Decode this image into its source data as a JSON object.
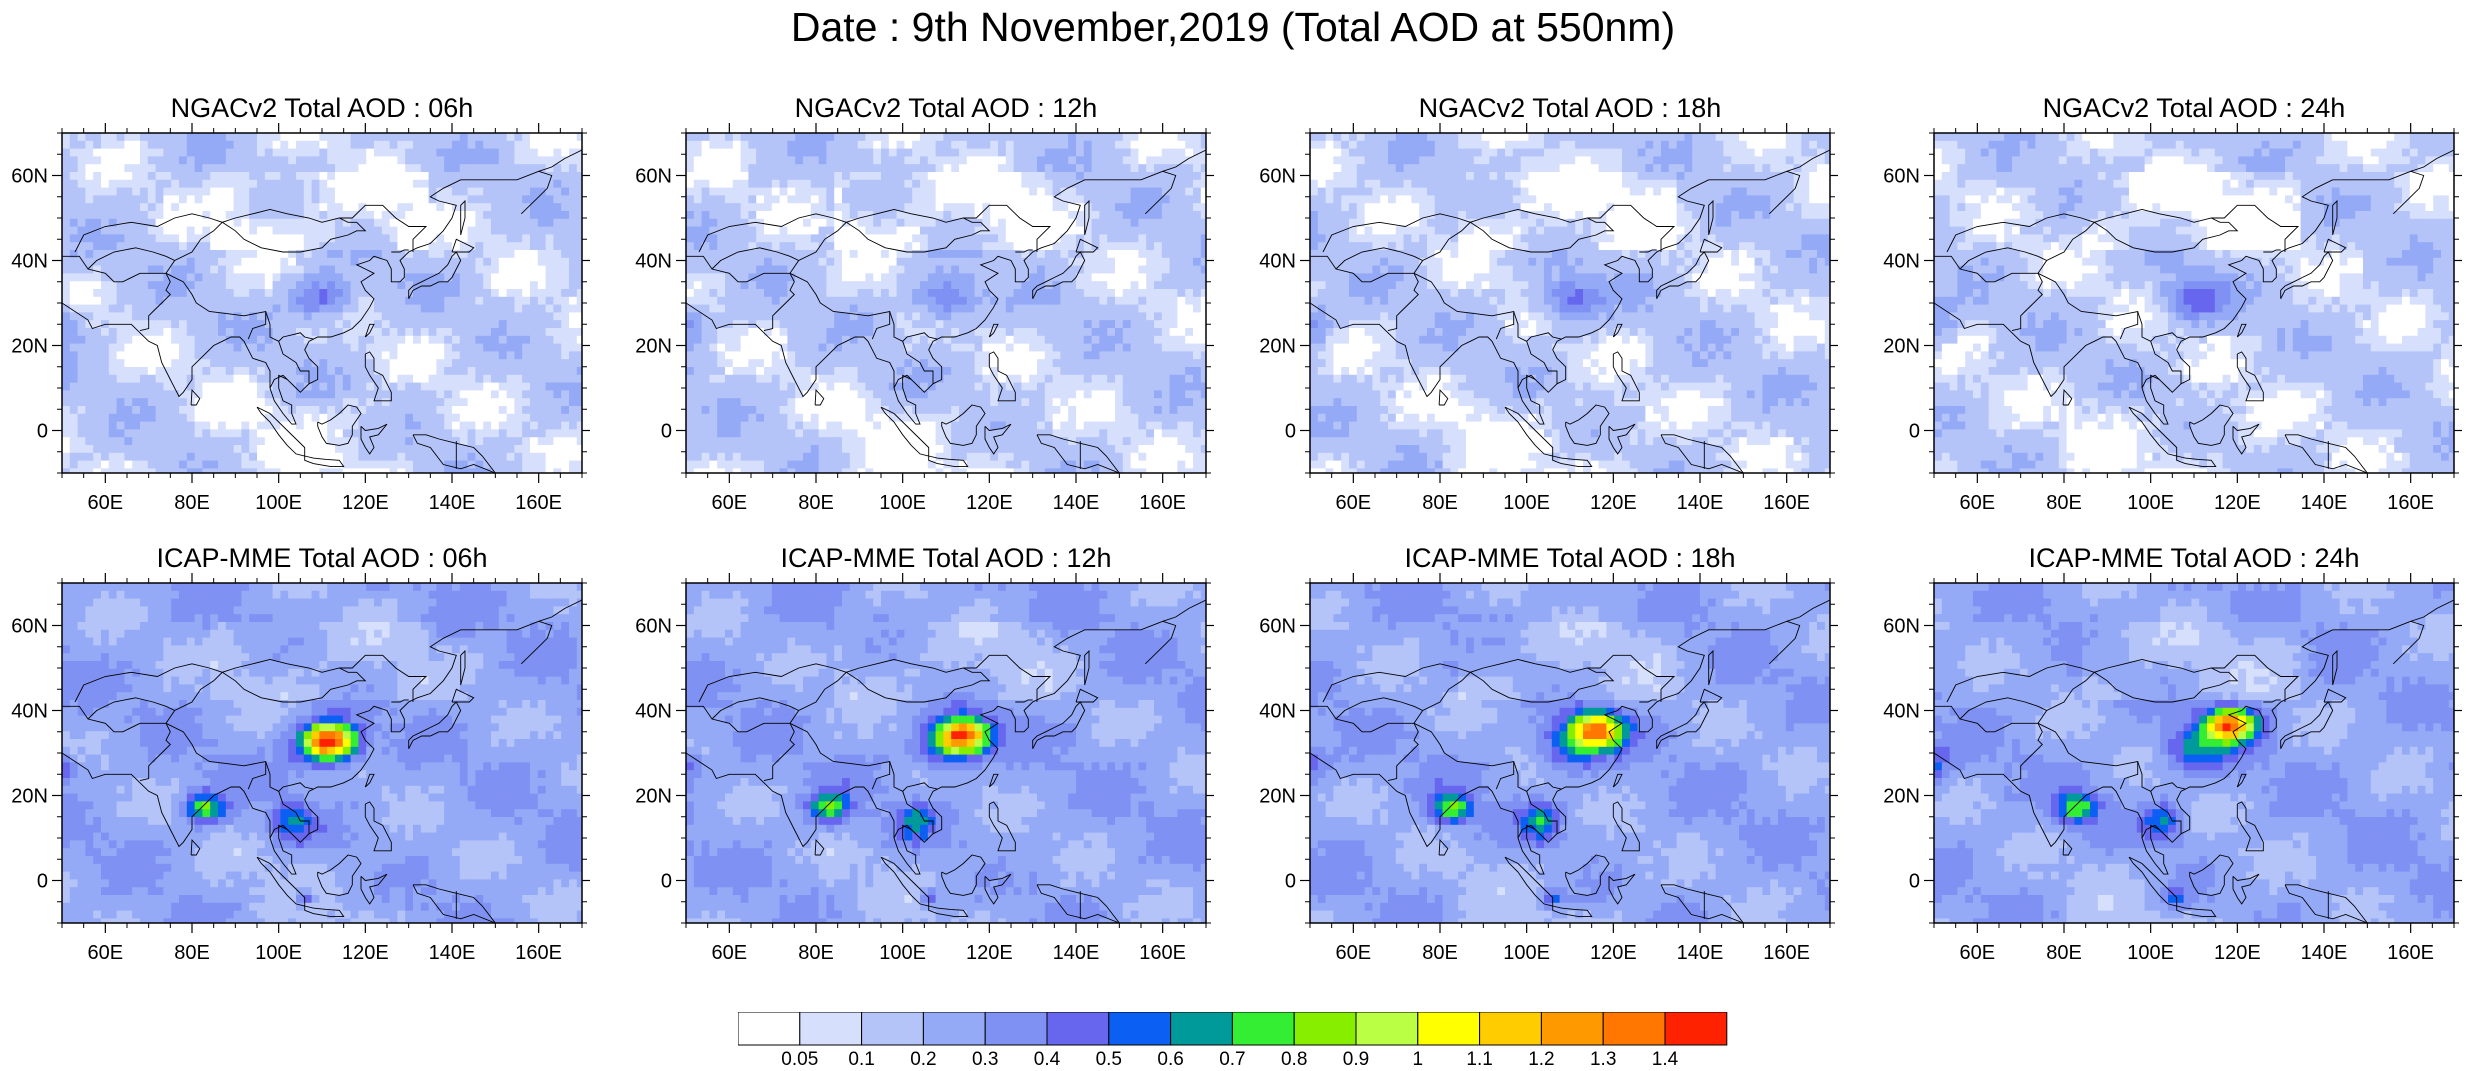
{
  "title": "Date : 9th November,2019 (Total AOD at 550nm)",
  "panels": [
    {
      "title": "NGACv2 Total AOD : 06h",
      "model": "NGACv2",
      "hour": "06h"
    },
    {
      "title": "NGACv2 Total AOD : 12h",
      "model": "NGACv2",
      "hour": "12h"
    },
    {
      "title": "NGACv2 Total AOD : 18h",
      "model": "NGACv2",
      "hour": "18h"
    },
    {
      "title": "NGACv2 Total AOD : 24h",
      "model": "NGACv2",
      "hour": "24h"
    },
    {
      "title": "ICAP-MME Total AOD : 06h",
      "model": "ICAP-MME",
      "hour": "06h"
    },
    {
      "title": "ICAP-MME Total AOD : 12h",
      "model": "ICAP-MME",
      "hour": "12h"
    },
    {
      "title": "ICAP-MME Total AOD : 18h",
      "model": "ICAP-MME",
      "hour": "18h"
    },
    {
      "title": "ICAP-MME Total AOD : 24h",
      "model": "ICAP-MME",
      "hour": "24h"
    }
  ],
  "map": {
    "lon_range": [
      50,
      170
    ],
    "lat_range": [
      -10,
      70
    ],
    "lat_ticks": [
      {
        "value": 0,
        "label": "0"
      },
      {
        "value": 20,
        "label": "20N"
      },
      {
        "value": 40,
        "label": "40N"
      },
      {
        "value": 60,
        "label": "60N"
      }
    ],
    "lon_ticks": [
      {
        "value": 60,
        "label": "60E"
      },
      {
        "value": 80,
        "label": "80E"
      },
      {
        "value": 100,
        "label": "100E"
      },
      {
        "value": 120,
        "label": "120E"
      },
      {
        "value": 140,
        "label": "140E"
      },
      {
        "value": 160,
        "label": "160E"
      }
    ]
  },
  "colorbar": {
    "levels": [
      "0.05",
      "0.1",
      "0.2",
      "0.3",
      "0.4",
      "0.5",
      "0.6",
      "0.7",
      "0.8",
      "0.9",
      "1",
      "1.1",
      "1.2",
      "1.3",
      "1.4"
    ],
    "colors": [
      "#ffffff",
      "#d6dffc",
      "#b4c3f8",
      "#94aaf6",
      "#7f91f2",
      "#6666ee",
      "#0b5ff2",
      "#009a9a",
      "#33ee33",
      "#88ee00",
      "#bbff44",
      "#ffff00",
      "#ffcc00",
      "#ff9900",
      "#ff7700",
      "#ff2200"
    ]
  }
}
